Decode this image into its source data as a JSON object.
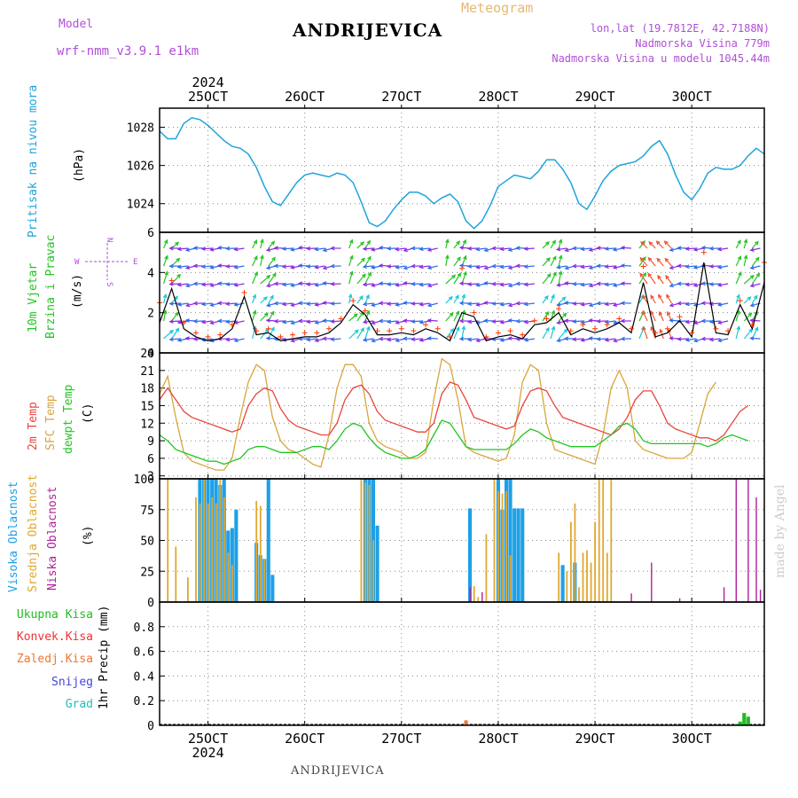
{
  "header": {
    "model_label": "Model",
    "model_name": "wrf-nmm_v3.9.1  e1km",
    "station": "ANDRIJEVICA",
    "meteogram": "Meteogram",
    "coords": "lon,lat (19.7812E, 42.7188N)",
    "elevation": "Nadmorska Visina 779m",
    "model_elevation": "Nadmorska Visina u modelu 1045.44m",
    "footer_station": "ANDRIJEVICA",
    "watermark": "made by Angel"
  },
  "time_axis": {
    "year": "2024",
    "day_labels": [
      "25OCT",
      "26OCT",
      "27OCT",
      "28OCT",
      "29OCT",
      "30OCT"
    ],
    "start": "2024-10-24T12:00",
    "end": "2024-10-30T18:00"
  },
  "panels": {
    "pressure": {
      "ylabel": "Pritisak na nivou mora",
      "unit": "(hPa)"
    },
    "wind": {
      "ylabel_1": "10m Vjetar",
      "ylabel_2": "Brzina i Pravac",
      "unit": "(m/s)",
      "compass_w": "W",
      "compass_e": "E",
      "compass_n": "N",
      "compass_s": "S"
    },
    "temp": {
      "label_2m": "2m Temp",
      "label_sfc": "SFC Temp",
      "label_dew": "dewpt Temp",
      "unit": "(C)"
    },
    "cloud": {
      "label_high": "Visoka Oblacnost",
      "label_mid": "Srednja Oblacnost",
      "label_low": "Niska Oblacnost",
      "unit": "(%)"
    },
    "precip": {
      "label_total": "Ukupna Kisa",
      "label_conv": "Konvek.Kisa",
      "label_frozen": "Zaledj.Kisa",
      "label_snow": "Snijeg",
      "label_hail": "Grad",
      "unit": "1hr Precip (mm)"
    }
  },
  "colors": {
    "pressure": "#1fa3dc",
    "wind_speed": "#000000",
    "wind_gust": "#ff3300",
    "t2m": "#e8453c",
    "tsfc": "#d9a53c",
    "dewpt": "#22c522",
    "cloud_high": "#1ea0e6",
    "cloud_mid": "#e0a830",
    "cloud_low": "#b0209a",
    "precip_total": "#22bb22",
    "precip_conv": "#ee3333",
    "precip_frozen": "#ee7733",
    "precip_snow": "#4444dd",
    "precip_hail": "#22bbbb",
    "header_purple": "#b04fd6"
  },
  "chart_data": [
    {
      "type": "line",
      "name": "pressure",
      "ylim": [
        1022.5,
        1029.0
      ],
      "yticks": [
        1024,
        1026,
        1028
      ],
      "x_hours": [
        0,
        2,
        4,
        6,
        8,
        10,
        12,
        14,
        16,
        18,
        20,
        22,
        24,
        26,
        28,
        30,
        32,
        34,
        36,
        38,
        40,
        42,
        44,
        46,
        48,
        50,
        52,
        54,
        56,
        58,
        60,
        62,
        64,
        66,
        68,
        70,
        72,
        74,
        76,
        78,
        80,
        82,
        84,
        86,
        88,
        90,
        92,
        94,
        96,
        98,
        100,
        102,
        104,
        106,
        108,
        110,
        112,
        114,
        116,
        118,
        120,
        122,
        124,
        126,
        128,
        130,
        132,
        134,
        136,
        138,
        140,
        142,
        144,
        146,
        148,
        150
      ],
      "values": [
        1027.8,
        1027.4,
        1027.4,
        1028.2,
        1028.5,
        1028.4,
        1028.1,
        1027.7,
        1027.3,
        1027.0,
        1026.9,
        1026.6,
        1025.9,
        1024.9,
        1024.1,
        1023.9,
        1024.5,
        1025.1,
        1025.5,
        1025.6,
        1025.5,
        1025.4,
        1025.6,
        1025.5,
        1025.1,
        1024.1,
        1023.0,
        1022.8,
        1023.1,
        1023.7,
        1024.2,
        1024.6,
        1024.6,
        1024.4,
        1024.0,
        1024.3,
        1024.5,
        1024.1,
        1023.1,
        1022.7,
        1023.1,
        1023.9,
        1024.9,
        1025.2,
        1025.5,
        1025.4,
        1025.3,
        1025.7,
        1026.3,
        1026.3,
        1025.8,
        1025.1,
        1024.0,
        1023.7,
        1024.4,
        1025.2,
        1025.7,
        1026.0,
        1026.1,
        1026.2,
        1026.5,
        1027.0,
        1027.3,
        1026.6,
        1025.5,
        1024.6,
        1024.2,
        1024.8,
        1025.6,
        1025.9,
        1025.8,
        1025.8,
        1026.0,
        1026.5,
        1026.9,
        1026.6
      ]
    },
    {
      "type": "line",
      "name": "wind",
      "ylim": [
        0,
        6
      ],
      "yticks": [
        0,
        2,
        4,
        6
      ],
      "x_hours": [
        0,
        3,
        6,
        9,
        12,
        15,
        18,
        21,
        24,
        27,
        30,
        33,
        36,
        39,
        42,
        45,
        48,
        51,
        54,
        57,
        60,
        63,
        66,
        69,
        72,
        75,
        78,
        81,
        84,
        87,
        90,
        93,
        96,
        99,
        102,
        105,
        108,
        111,
        114,
        117,
        120,
        123,
        126,
        129,
        132,
        135,
        138,
        141,
        144,
        147,
        150
      ],
      "speed": [
        1.5,
        3.2,
        1.2,
        0.8,
        0.6,
        0.7,
        1.2,
        2.8,
        0.9,
        1.0,
        0.6,
        0.7,
        0.8,
        0.8,
        1.0,
        1.5,
        2.4,
        1.9,
        0.9,
        0.9,
        1.0,
        0.9,
        1.2,
        1.0,
        0.6,
        2.0,
        1.8,
        0.6,
        0.8,
        0.9,
        0.7,
        1.4,
        1.5,
        2.0,
        0.9,
        1.2,
        1.0,
        1.2,
        1.5,
        1.0,
        3.5,
        0.8,
        1.0,
        1.6,
        0.8,
        4.5,
        1.0,
        0.9,
        2.4,
        1.2,
        3.5
      ],
      "gust": [
        2.5,
        3.6,
        1.5,
        1.0,
        0.8,
        0.9,
        1.4,
        3.0,
        1.1,
        1.2,
        0.8,
        0.9,
        1.0,
        1.0,
        1.2,
        1.7,
        2.6,
        2.1,
        1.1,
        1.1,
        1.2,
        1.1,
        1.4,
        1.2,
        0.8,
        4.2,
        2.0,
        0.8,
        1.0,
        1.1,
        0.9,
        1.6,
        1.7,
        2.2,
        1.1,
        1.4,
        1.2,
        1.4,
        1.7,
        1.2,
        4.3,
        1.0,
        1.2,
        1.8,
        1.0,
        5.0,
        1.2,
        1.1,
        2.6,
        1.4,
        4.5
      ]
    },
    {
      "type": "line",
      "name": "temperature",
      "ylim": [
        2.5,
        24
      ],
      "yticks": [
        3,
        6,
        9,
        12,
        15,
        18,
        21,
        24
      ],
      "x_hours": [
        0,
        2,
        4,
        6,
        8,
        10,
        12,
        14,
        16,
        18,
        20,
        22,
        24,
        26,
        28,
        30,
        32,
        34,
        36,
        38,
        40,
        42,
        44,
        46,
        48,
        50,
        52,
        54,
        56,
        58,
        60,
        62,
        64,
        66,
        68,
        70,
        72,
        74,
        76,
        78,
        80,
        82,
        84,
        86,
        88,
        90,
        92,
        94,
        96,
        98,
        100,
        102,
        104,
        106,
        108,
        110,
        112,
        114,
        116,
        118,
        120,
        122,
        124,
        126,
        128,
        130,
        132,
        134,
        136,
        138,
        140,
        142,
        144,
        146,
        148,
        150
      ],
      "t2m": [
        16,
        18,
        16,
        14,
        13,
        12.5,
        12,
        11.5,
        11,
        10.5,
        11,
        15,
        17,
        18,
        17.5,
        14.5,
        12.5,
        11.5,
        11,
        10.5,
        10,
        10,
        12,
        16,
        18,
        18.5,
        17,
        14,
        12.5,
        12,
        11.5,
        11,
        10.5,
        10.5,
        12,
        17,
        19,
        18.5,
        16,
        13,
        12.5,
        12,
        11.5,
        11,
        11.5,
        15,
        17.5,
        18,
        17.5,
        15,
        13,
        12.5,
        12,
        11.5,
        11,
        10.5,
        10,
        11,
        13,
        16,
        17.5,
        17.5,
        15,
        12,
        11,
        10.5,
        10,
        9.5,
        9.5,
        9,
        10,
        12,
        14,
        15
      ],
      "tsfc": [
        17,
        20,
        13,
        7,
        5.5,
        5,
        4.5,
        4,
        4,
        6,
        13,
        19,
        22,
        21,
        13,
        9,
        7.5,
        7,
        6,
        5,
        4.5,
        10,
        18,
        22,
        22,
        20,
        12,
        9,
        8,
        7.5,
        7,
        6,
        6,
        7,
        16,
        23,
        22,
        16,
        8,
        7,
        6.5,
        6,
        5.5,
        6,
        10,
        19,
        22,
        21,
        12,
        7.5,
        7,
        6.5,
        6,
        5.5,
        5,
        10,
        18,
        21,
        18,
        9,
        7.5,
        7,
        6.5,
        6,
        6,
        6,
        7,
        12,
        17,
        19
      ],
      "dewpt": [
        10,
        9,
        7.5,
        7,
        6.5,
        6,
        5.5,
        5.5,
        5,
        5.5,
        6,
        7.5,
        8,
        8,
        7.5,
        7,
        7,
        7,
        7.5,
        8,
        8,
        7.5,
        9,
        11,
        12,
        11.5,
        9.5,
        8,
        7,
        6.5,
        6,
        6,
        6.5,
        7.5,
        10,
        12.5,
        12,
        10,
        8,
        7.5,
        7.5,
        7.5,
        7.5,
        7.5,
        8.5,
        10,
        11,
        10.5,
        9.5,
        9,
        8.5,
        8,
        8,
        8,
        8,
        9,
        10,
        11.5,
        12,
        11,
        9,
        8.5,
        8.5,
        8.5,
        8.5,
        8.5,
        8.5,
        8.5,
        8,
        8.5,
        9.5,
        10,
        9.5,
        9
      ]
    },
    {
      "type": "bar",
      "name": "cloud_cover",
      "ylim": [
        0,
        100
      ],
      "yticks": [
        0,
        25,
        50,
        75,
        100
      ],
      "high": [
        [
          10,
          100
        ],
        [
          11,
          100
        ],
        [
          12,
          100
        ],
        [
          13,
          100
        ],
        [
          14,
          100
        ],
        [
          15,
          95
        ],
        [
          16,
          100
        ],
        [
          17,
          58
        ],
        [
          18,
          60
        ],
        [
          19,
          75
        ],
        [
          24,
          48
        ],
        [
          25,
          38
        ],
        [
          26,
          35
        ],
        [
          27,
          100
        ],
        [
          28,
          22
        ],
        [
          51,
          100
        ],
        [
          52,
          100
        ],
        [
          53,
          100
        ],
        [
          54,
          62
        ],
        [
          77,
          76
        ],
        [
          84,
          100
        ],
        [
          85,
          75
        ],
        [
          86,
          100
        ],
        [
          87,
          100
        ],
        [
          88,
          76
        ],
        [
          89,
          76
        ],
        [
          90,
          76
        ],
        [
          100,
          30
        ],
        [
          103,
          32
        ]
      ],
      "mid": [
        [
          2,
          100
        ],
        [
          4,
          45
        ],
        [
          7,
          20
        ],
        [
          9,
          85
        ],
        [
          10,
          80
        ],
        [
          11,
          100
        ],
        [
          12,
          80
        ],
        [
          13,
          85
        ],
        [
          14,
          80
        ],
        [
          15,
          100
        ],
        [
          16,
          85
        ],
        [
          17,
          40
        ],
        [
          18,
          30
        ],
        [
          24,
          82
        ],
        [
          25,
          78
        ],
        [
          26,
          35
        ],
        [
          50,
          100
        ],
        [
          51,
          97
        ],
        [
          52,
          95
        ],
        [
          53,
          50
        ],
        [
          78,
          13
        ],
        [
          79,
          4
        ],
        [
          81,
          55
        ],
        [
          83,
          100
        ],
        [
          84,
          90
        ],
        [
          85,
          88
        ],
        [
          86,
          90
        ],
        [
          87,
          38
        ],
        [
          99,
          40
        ],
        [
          101,
          25
        ],
        [
          102,
          65
        ],
        [
          103,
          80
        ],
        [
          104,
          12
        ],
        [
          105,
          40
        ],
        [
          106,
          42
        ],
        [
          107,
          32
        ],
        [
          108,
          65
        ],
        [
          109,
          100
        ],
        [
          110,
          100
        ],
        [
          111,
          40
        ],
        [
          112,
          100
        ]
      ],
      "low": [
        [
          77,
          12
        ],
        [
          80,
          8
        ],
        [
          117,
          7
        ],
        [
          122,
          32
        ],
        [
          129,
          3
        ],
        [
          140,
          12
        ],
        [
          143,
          100
        ],
        [
          146,
          100
        ],
        [
          148,
          85
        ],
        [
          149,
          10
        ]
      ]
    },
    {
      "type": "bar",
      "name": "precipitation",
      "ylim": [
        0,
        1.0
      ],
      "yticks": [
        0,
        0.2,
        0.4,
        0.6,
        0.8
      ],
      "total": [
        [
          143,
          0.01
        ],
        [
          144,
          0.03
        ],
        [
          145,
          0.1
        ],
        [
          146,
          0.07
        ]
      ],
      "frozen": [
        [
          76,
          0.04
        ]
      ],
      "convective": [],
      "snow": [],
      "hail": []
    }
  ]
}
